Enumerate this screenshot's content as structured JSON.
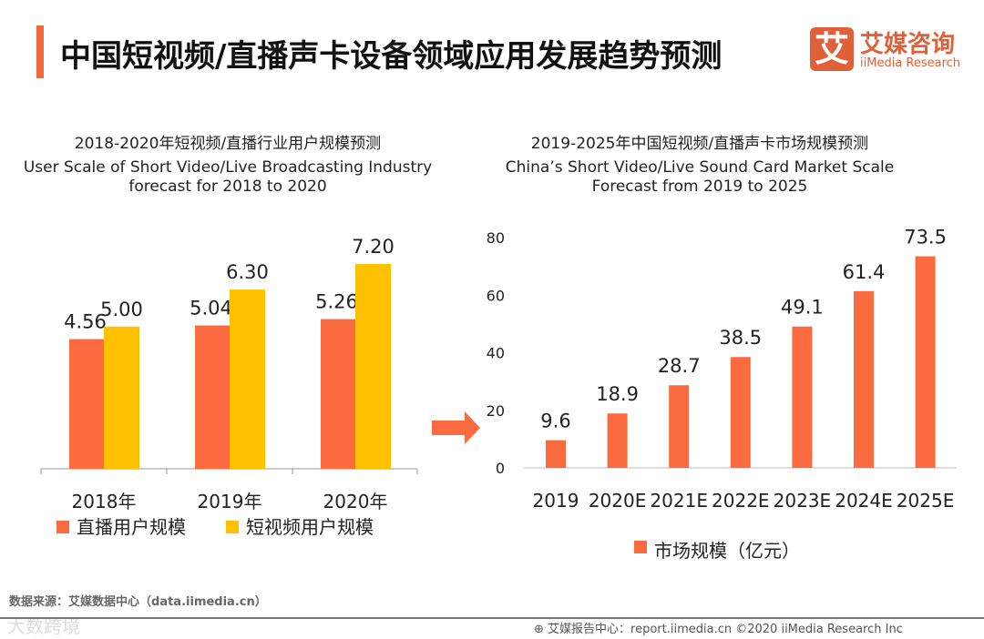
{
  "header": {
    "title": "中国短视频/直播声卡设备领域应用发展趋势预测",
    "logo_mark": "艾",
    "logo_cn": "艾媒咨询",
    "logo_en": "iiMedia Research"
  },
  "colors": {
    "orange": "#fb6b3f",
    "yellow": "#ffc000",
    "accent": "#f06a3c"
  },
  "chart_data": [
    {
      "type": "bar",
      "title": "2018-2020年短视频/直播行业用户规模预测",
      "subtitle_line1": "User Scale of Short Video/Live Broadcasting Industry",
      "subtitle_line2": "forecast for 2018 to 2020",
      "categories": [
        "2018年",
        "2019年",
        "2020年"
      ],
      "series": [
        {
          "name": "直播用户规模",
          "values": [
            4.56,
            5.04,
            5.26
          ],
          "labels": [
            "4.56",
            "5.04",
            "5.26"
          ]
        },
        {
          "name": "短视频用户规模",
          "values": [
            5.0,
            6.3,
            7.2
          ],
          "labels": [
            "5.00",
            "6.30",
            "7.20"
          ]
        }
      ],
      "ylim": [
        0,
        8
      ],
      "legend": "bottom"
    },
    {
      "type": "bar",
      "title": "2019-2025年中国短视频/直播声卡市场规模预测",
      "subtitle_line1": "China’s Short Video/Live Sound Card Market Scale",
      "subtitle_line2": "Forecast from 2019 to 2025",
      "categories": [
        "2019",
        "2020E",
        "2021E",
        "2022E",
        "2023E",
        "2024E",
        "2025E"
      ],
      "series": [
        {
          "name": "市场规模（亿元）",
          "values": [
            9.6,
            18.9,
            28.7,
            38.5,
            49.1,
            61.4,
            73.5
          ],
          "labels": [
            "9.6",
            "18.9",
            "28.7",
            "38.5",
            "49.1",
            "61.4",
            "73.5"
          ]
        }
      ],
      "ylim": [
        0,
        80
      ],
      "yticks": [
        "0",
        "20",
        "40",
        "60",
        "80"
      ],
      "legend": "bottom"
    }
  ],
  "footer": {
    "source": "数据来源：艾媒数据中心（data.iimedia.cn）",
    "watermark": "大数跨境",
    "report": "艾媒报告中心：report.iimedia.cn   ©2020  iiMedia Research  Inc"
  }
}
